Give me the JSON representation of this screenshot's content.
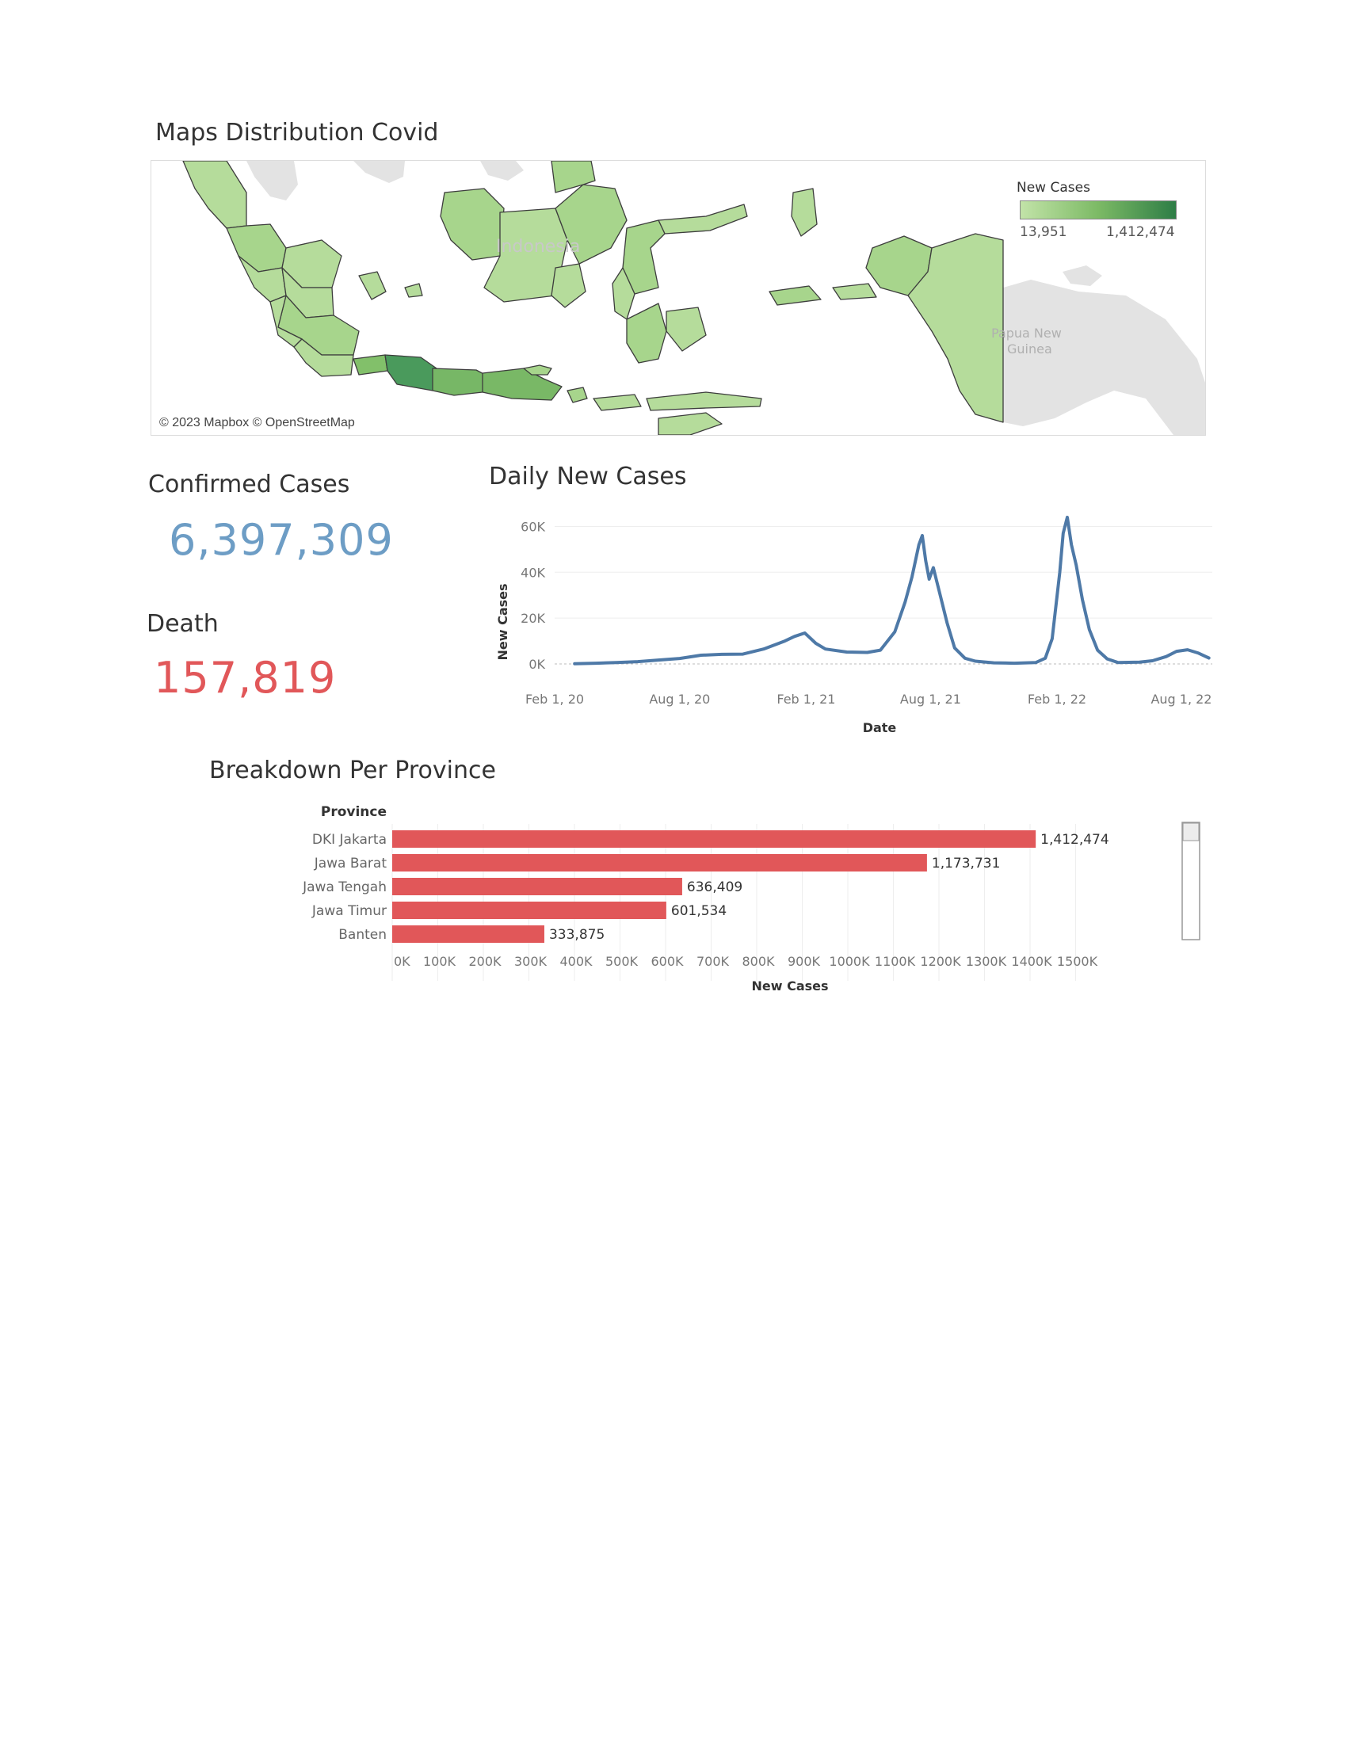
{
  "map": {
    "title": "Maps Distribution Covid",
    "legend_title": "New Cases",
    "legend_min": "13,951",
    "legend_max": "1,412,474",
    "attribution": "© 2023 Mapbox © OpenStreetMap",
    "country_label": "Indonesia",
    "neighbor_label_1": "Papua New",
    "neighbor_label_2": "Guinea",
    "colors": {
      "low": "#c2e3a8",
      "high": "#2e7d46",
      "neighbor": "#e3e3e3",
      "border": "#3d3d3d"
    }
  },
  "confirmed": {
    "label": "Confirmed Cases",
    "value": "6,397,309",
    "color": "#6d9dc5"
  },
  "death": {
    "label": "Death",
    "value": "157,819",
    "color": "#e15759"
  },
  "chart_data": [
    {
      "type": "line",
      "title": "Daily New Cases",
      "xlabel": "Date",
      "ylabel": "New Cases",
      "x_ticks": [
        "Feb 1, 20",
        "Aug 1, 20",
        "Feb 1, 21",
        "Aug 1, 21",
        "Feb 1, 22",
        "Aug 1, 22"
      ],
      "y_ticks": [
        "0K",
        "20K",
        "40K",
        "60K"
      ],
      "ylim": [
        0,
        65000
      ],
      "xlim": [
        "2020-02-01",
        "2022-09-15"
      ],
      "grid": true,
      "color": "#4e79a7",
      "series": [
        {
          "x": [
            "2020-03-01",
            "2020-04-01",
            "2020-05-01",
            "2020-06-01",
            "2020-07-01",
            "2020-08-01",
            "2020-09-01",
            "2020-10-01",
            "2020-11-01",
            "2020-12-01",
            "2021-01-01",
            "2021-01-15",
            "2021-01-30",
            "2021-02-15",
            "2021-03-01",
            "2021-04-01",
            "2021-05-01",
            "2021-05-20",
            "2021-06-10",
            "2021-06-25",
            "2021-07-05",
            "2021-07-15",
            "2021-07-20",
            "2021-07-25",
            "2021-07-30",
            "2021-08-05",
            "2021-08-15",
            "2021-08-25",
            "2021-09-05",
            "2021-09-20",
            "2021-10-05",
            "2021-11-01",
            "2021-12-01",
            "2022-01-01",
            "2022-01-15",
            "2022-01-25",
            "2022-02-05",
            "2022-02-10",
            "2022-02-16",
            "2022-02-22",
            "2022-03-01",
            "2022-03-10",
            "2022-03-20",
            "2022-04-01",
            "2022-04-15",
            "2022-05-01",
            "2022-06-01",
            "2022-06-20",
            "2022-07-10",
            "2022-07-25",
            "2022-08-10",
            "2022-08-25",
            "2022-09-10"
          ],
          "y": [
            100,
            300,
            600,
            1000,
            1700,
            2400,
            3800,
            4200,
            4300,
            6500,
            10000,
            12000,
            13500,
            9000,
            6500,
            5200,
            5000,
            6000,
            14000,
            27000,
            38000,
            52000,
            56000,
            45000,
            37000,
            42000,
            30000,
            18000,
            7000,
            2500,
            1200,
            500,
            300,
            600,
            2500,
            11000,
            40000,
            57000,
            64000,
            52000,
            43000,
            28000,
            15000,
            6000,
            2200,
            600,
            800,
            1400,
            3200,
            5500,
            6200,
            4800,
            2600
          ]
        }
      ]
    },
    {
      "type": "bar",
      "title": "Breakdown Per Province",
      "xlabel": "New Cases",
      "ylabel": "Province",
      "categories": [
        "DKI Jakarta",
        "Jawa Barat",
        "Jawa Tengah",
        "Jawa Timur",
        "Banten"
      ],
      "values": [
        1412474,
        1173731,
        636409,
        601534,
        333875
      ],
      "value_labels": [
        "1,412,474",
        "1,173,731",
        "636,409",
        "601,534",
        "333,875"
      ],
      "x_ticks": [
        "0K",
        "100K",
        "200K",
        "300K",
        "400K",
        "500K",
        "600K",
        "700K",
        "800K",
        "900K",
        "1000K",
        "1100K",
        "1200K",
        "1300K",
        "1400K",
        "1500K"
      ],
      "xlim": [
        0,
        1600000
      ],
      "grid": true,
      "color": "#e15759"
    }
  ]
}
